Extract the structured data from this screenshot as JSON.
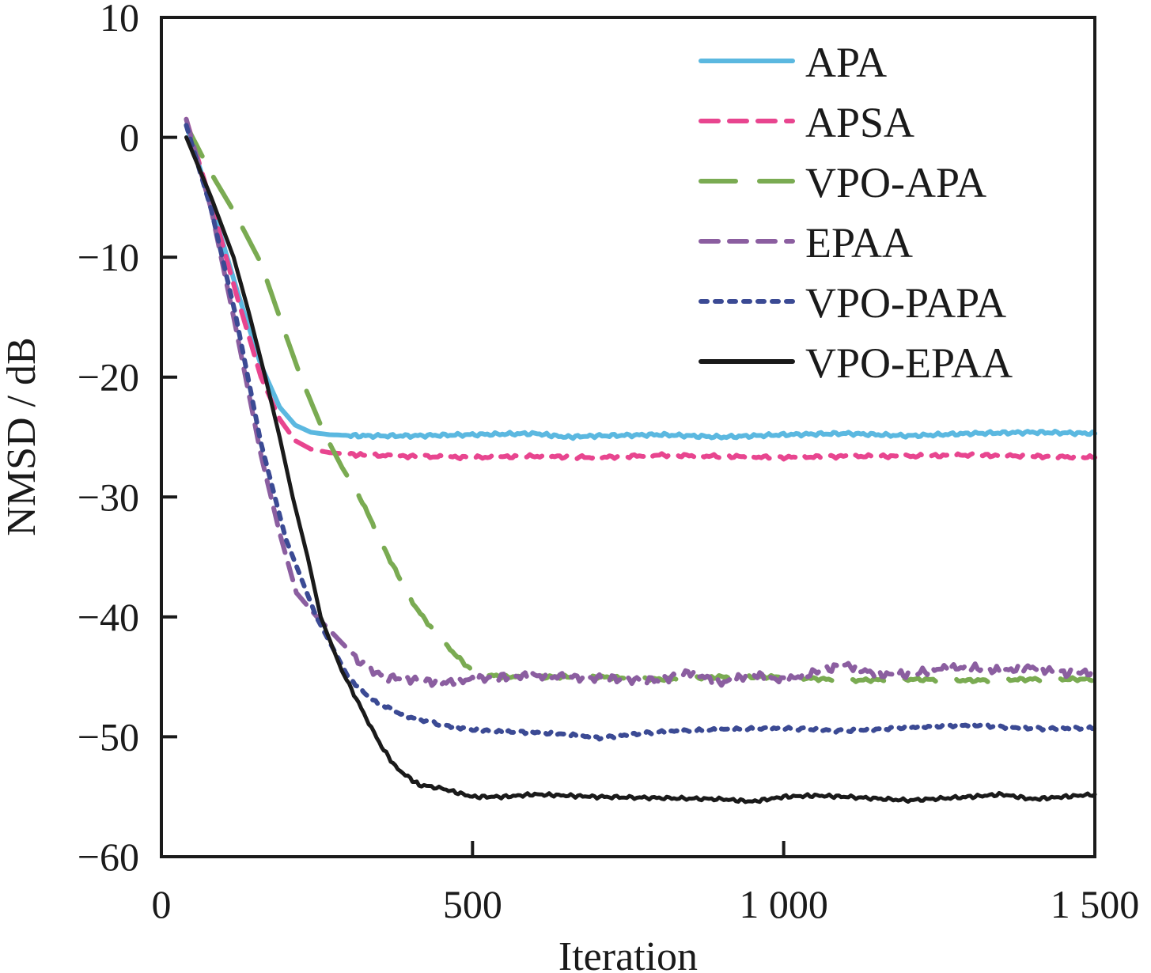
{
  "chart_data": {
    "type": "line",
    "title": "",
    "xlabel": "Iteration",
    "ylabel": "NMSD / dB",
    "xlim": [
      0,
      1500
    ],
    "ylim": [
      -60,
      10
    ],
    "xticks": [
      0,
      500,
      1000,
      1500
    ],
    "xtick_labels": [
      "0",
      "500",
      "1 000",
      "1 500"
    ],
    "yticks": [
      10,
      0,
      -10,
      -20,
      -30,
      -40,
      -50,
      -60
    ],
    "ytick_labels": [
      "10",
      "0",
      "−10",
      "−20",
      "−30",
      "−40",
      "−50",
      "−60"
    ],
    "grid": false,
    "legend_position": "top-right",
    "series": [
      {
        "name": "APA",
        "color": "#5bb8e0",
        "dash": "solid",
        "x": [
          40,
          80,
          120,
          160,
          190,
          215,
          240,
          270,
          320,
          400,
          500,
          600,
          650,
          700,
          800,
          900,
          1000,
          1100,
          1200,
          1300,
          1400,
          1500
        ],
        "y": [
          1.0,
          -5.5,
          -12.5,
          -19.0,
          -22.5,
          -24.0,
          -24.6,
          -24.8,
          -24.9,
          -24.9,
          -24.8,
          -24.7,
          -25.0,
          -24.9,
          -24.8,
          -25.0,
          -24.8,
          -24.7,
          -24.9,
          -24.7,
          -24.6,
          -24.7
        ]
      },
      {
        "name": "APSA",
        "color": "#e8458f",
        "dash": "long-dash",
        "x": [
          40,
          80,
          120,
          160,
          190,
          215,
          240,
          270,
          320,
          400,
          500,
          600,
          700,
          800,
          900,
          1000,
          1100,
          1200,
          1300,
          1400,
          1500
        ],
        "y": [
          1.5,
          -5.5,
          -13.0,
          -20.0,
          -23.5,
          -25.3,
          -26.0,
          -26.3,
          -26.5,
          -26.6,
          -26.7,
          -26.6,
          -26.7,
          -26.5,
          -26.6,
          -26.7,
          -26.6,
          -26.6,
          -26.5,
          -26.6,
          -26.7
        ]
      },
      {
        "name": "VPO-APA",
        "color": "#7aab52",
        "dash": "long-dash-gap",
        "x": [
          40,
          80,
          120,
          160,
          200,
          224,
          260,
          290,
          319,
          360,
          400,
          420,
          460,
          503,
          550,
          600,
          700,
          800,
          900,
          1000,
          1100,
          1200,
          1300,
          1400,
          1500
        ],
        "y": [
          1.0,
          -3.0,
          -6.5,
          -10.5,
          -16.5,
          -20.0,
          -24.5,
          -27.5,
          -30.0,
          -34.5,
          -38.5,
          -40.0,
          -42.5,
          -44.7,
          -45.0,
          -45.0,
          -45.0,
          -45.2,
          -45.0,
          -45.0,
          -45.3,
          -45.2,
          -45.3,
          -45.2,
          -45.2
        ]
      },
      {
        "name": "EPAA",
        "color": "#8b5ea0",
        "dash": "dash",
        "x": [
          40,
          80,
          120,
          160,
          190,
          217,
          250,
          287,
          320,
          357,
          400,
          450,
          500,
          550,
          600,
          700,
          800,
          850,
          900,
          950,
          1000,
          1050,
          1100,
          1150,
          1200,
          1250,
          1300,
          1350,
          1400,
          1450,
          1500
        ],
        "y": [
          1.5,
          -6.0,
          -16.0,
          -26.5,
          -33.0,
          -38.0,
          -40.0,
          -42.0,
          -43.8,
          -45.0,
          -45.2,
          -45.5,
          -45.2,
          -45.0,
          -44.9,
          -45.1,
          -45.3,
          -44.6,
          -45.5,
          -44.8,
          -45.3,
          -44.6,
          -44.0,
          -44.8,
          -44.8,
          -44.3,
          -44.2,
          -44.5,
          -44.2,
          -44.7,
          -44.6
        ]
      },
      {
        "name": "VPO-PAPA",
        "color": "#3b4a94",
        "dash": "dot",
        "x": [
          40,
          80,
          120,
          160,
          200,
          249,
          300,
          340,
          389,
          450,
          500,
          550,
          600,
          650,
          700,
          800,
          900,
          1000,
          1100,
          1200,
          1300,
          1400,
          1500
        ],
        "y": [
          1.0,
          -6.0,
          -15.0,
          -25.5,
          -33.5,
          -40.0,
          -45.0,
          -47.0,
          -48.2,
          -49.0,
          -49.4,
          -49.6,
          -49.6,
          -49.8,
          -50.1,
          -49.6,
          -49.4,
          -49.3,
          -49.5,
          -49.2,
          -49.0,
          -49.3,
          -49.3
        ]
      },
      {
        "name": "VPO-EPAA",
        "color": "#1a1a1a",
        "dash": "solid",
        "x": [
          40,
          80,
          116,
          140,
          167,
          190,
          211,
          235,
          256,
          290,
          325,
          350,
          376,
          400,
          414,
          450,
          500,
          550,
          600,
          650,
          700,
          800,
          900,
          950,
          1000,
          1050,
          1100,
          1200,
          1300,
          1350,
          1400,
          1450,
          1500
        ],
        "y": [
          0.0,
          -5.0,
          -10.0,
          -14.5,
          -20.0,
          -25.0,
          -30.0,
          -35.0,
          -40.0,
          -44.5,
          -48.0,
          -50.5,
          -52.5,
          -53.5,
          -54.0,
          -54.3,
          -55.0,
          -55.0,
          -54.8,
          -54.9,
          -55.0,
          -55.1,
          -55.2,
          -55.4,
          -55.0,
          -54.9,
          -55.0,
          -55.3,
          -55.0,
          -54.8,
          -55.2,
          -55.0,
          -54.8
        ]
      }
    ]
  }
}
